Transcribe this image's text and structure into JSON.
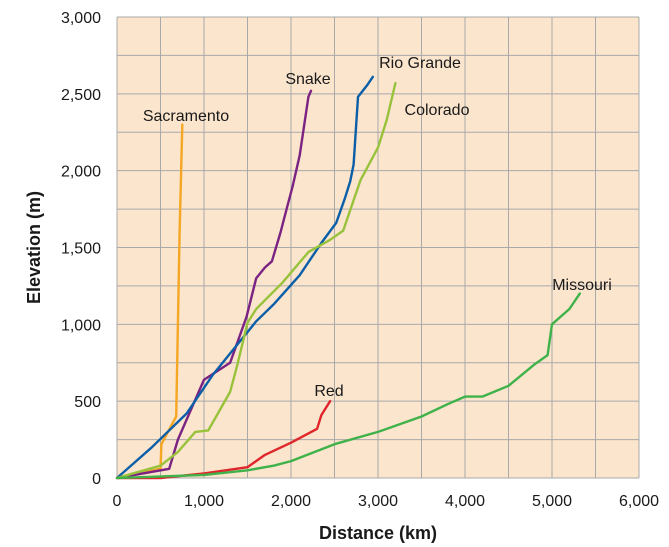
{
  "chart_data": {
    "type": "line",
    "xlabel": "Distance (km)",
    "ylabel": "Elevation (m)",
    "xlim": [
      0,
      6000
    ],
    "ylim": [
      0,
      3000
    ],
    "x_ticks": [
      0,
      1000,
      2000,
      3000,
      4000,
      5000,
      6000
    ],
    "x_tick_labels": [
      "0",
      "1,000",
      "2,000",
      "3,000",
      "4,000",
      "5,000",
      "6,000"
    ],
    "y_ticks": [
      0,
      500,
      1000,
      1500,
      2000,
      2500,
      3000
    ],
    "y_tick_labels": [
      "0",
      "500",
      "1,000",
      "1,500",
      "2,000",
      "2,500",
      "3,000"
    ],
    "grid": true,
    "background_color": "#fbe5cd",
    "grid_color": "#a9a9a9",
    "series": [
      {
        "name": "Sacramento",
        "color": "#f5a623",
        "points": [
          [
            0,
            0
          ],
          [
            500,
            60
          ],
          [
            510,
            220
          ],
          [
            680,
            400
          ],
          [
            720,
            1600
          ],
          [
            750,
            2300
          ]
        ]
      },
      {
        "name": "Snake",
        "color": "#7b2382",
        "points": [
          [
            0,
            0
          ],
          [
            600,
            60
          ],
          [
            700,
            250
          ],
          [
            1000,
            640
          ],
          [
            1300,
            750
          ],
          [
            1490,
            1050
          ],
          [
            1600,
            1300
          ],
          [
            1700,
            1370
          ],
          [
            1780,
            1410
          ],
          [
            1880,
            1600
          ],
          [
            1950,
            1750
          ],
          [
            2020,
            1900
          ],
          [
            2100,
            2100
          ],
          [
            2200,
            2480
          ],
          [
            2230,
            2520
          ]
        ]
      },
      {
        "name": "Rio Grande",
        "color": "#0b5ea8",
        "points": [
          [
            0,
            0
          ],
          [
            400,
            200
          ],
          [
            800,
            420
          ],
          [
            1100,
            670
          ],
          [
            1400,
            880
          ],
          [
            1600,
            1020
          ],
          [
            1800,
            1130
          ],
          [
            2100,
            1320
          ],
          [
            2350,
            1530
          ],
          [
            2520,
            1660
          ],
          [
            2620,
            1820
          ],
          [
            2680,
            1930
          ],
          [
            2720,
            2040
          ],
          [
            2770,
            2480
          ],
          [
            2880,
            2560
          ],
          [
            2940,
            2610
          ]
        ]
      },
      {
        "name": "Colorado",
        "color": "#98c23c",
        "points": [
          [
            0,
            0
          ],
          [
            500,
            80
          ],
          [
            700,
            170
          ],
          [
            900,
            300
          ],
          [
            1050,
            310
          ],
          [
            1300,
            560
          ],
          [
            1380,
            730
          ],
          [
            1500,
            1010
          ],
          [
            1600,
            1100
          ],
          [
            1900,
            1270
          ],
          [
            2200,
            1470
          ],
          [
            2450,
            1550
          ],
          [
            2600,
            1610
          ],
          [
            2800,
            1940
          ],
          [
            3000,
            2150
          ],
          [
            3100,
            2330
          ],
          [
            3200,
            2570
          ]
        ]
      },
      {
        "name": "Red",
        "color": "#e0262b",
        "points": [
          [
            0,
            0
          ],
          [
            500,
            0
          ],
          [
            1000,
            30
          ],
          [
            1500,
            70
          ],
          [
            1700,
            150
          ],
          [
            2000,
            230
          ],
          [
            2300,
            320
          ],
          [
            2350,
            410
          ],
          [
            2450,
            500
          ]
        ]
      },
      {
        "name": "Missouri",
        "color": "#3fb24a",
        "points": [
          [
            0,
            0
          ],
          [
            1000,
            20
          ],
          [
            1500,
            50
          ],
          [
            1800,
            80
          ],
          [
            2000,
            110
          ],
          [
            2500,
            220
          ],
          [
            3000,
            300
          ],
          [
            3500,
            400
          ],
          [
            3800,
            480
          ],
          [
            4000,
            530
          ],
          [
            4200,
            530
          ],
          [
            4500,
            600
          ],
          [
            4800,
            740
          ],
          [
            4950,
            800
          ],
          [
            4990,
            960
          ],
          [
            5000,
            1000
          ],
          [
            5100,
            1050
          ],
          [
            5200,
            1100
          ],
          [
            5320,
            1200
          ]
        ]
      }
    ],
    "series_labels": [
      "Sacramento",
      "Snake",
      "Rio Grande",
      "Colorado",
      "Red",
      "Missouri"
    ]
  }
}
